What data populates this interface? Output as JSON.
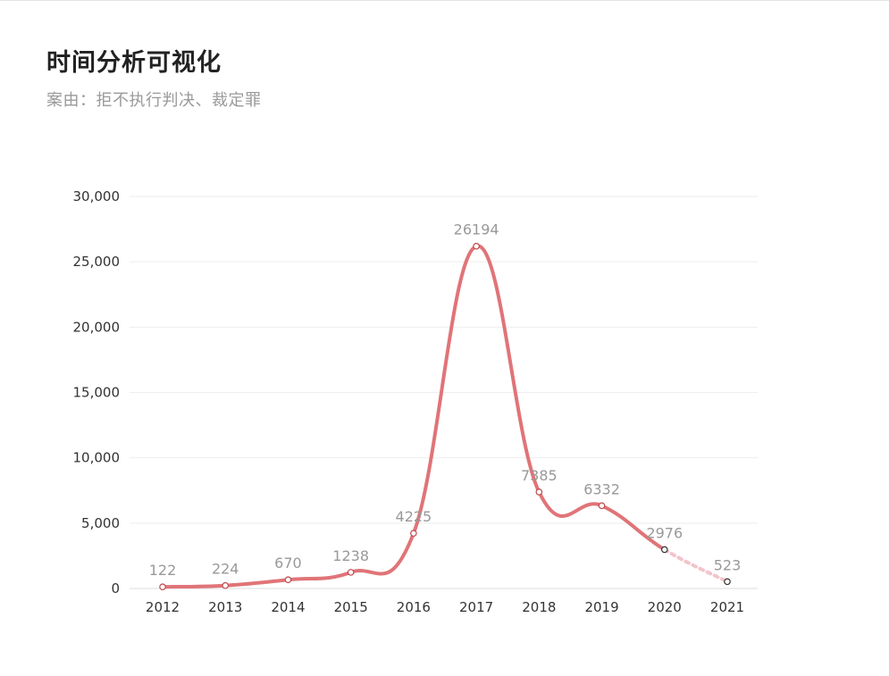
{
  "header": {
    "title": "时间分析可视化",
    "subtitle": "案由：拒不执行判决、裁定罪"
  },
  "chart_data": {
    "type": "line",
    "title": "时间分析可视化",
    "subtitle": "案由：拒不执行判决、裁定罪",
    "categories": [
      "2012",
      "2013",
      "2014",
      "2015",
      "2016",
      "2017",
      "2018",
      "2019",
      "2020",
      "2021"
    ],
    "series": [
      {
        "values": [
          122,
          224,
          670,
          1238,
          4225,
          26194,
          7385,
          6332,
          2976,
          523
        ],
        "data_labels": [
          "122",
          "224",
          "670",
          "1238",
          "4225",
          "26194",
          "7385",
          "6332",
          "2976",
          "523"
        ],
        "color": "#e07478",
        "smooth": true,
        "last_segment_style": "dotted-light"
      }
    ],
    "y_ticks": [
      "0",
      "5,000",
      "10,000",
      "15,000",
      "20,000",
      "25,000",
      "30,000"
    ],
    "ylim": [
      0,
      30000
    ],
    "xlabel": "",
    "ylabel": "",
    "grid": "horizontal",
    "legend": "none",
    "colors": {
      "line": "#e07478",
      "line_faded": "#f2c4cc",
      "grid": "#eeeeee",
      "label": "#999999",
      "tick": "#333333"
    }
  }
}
